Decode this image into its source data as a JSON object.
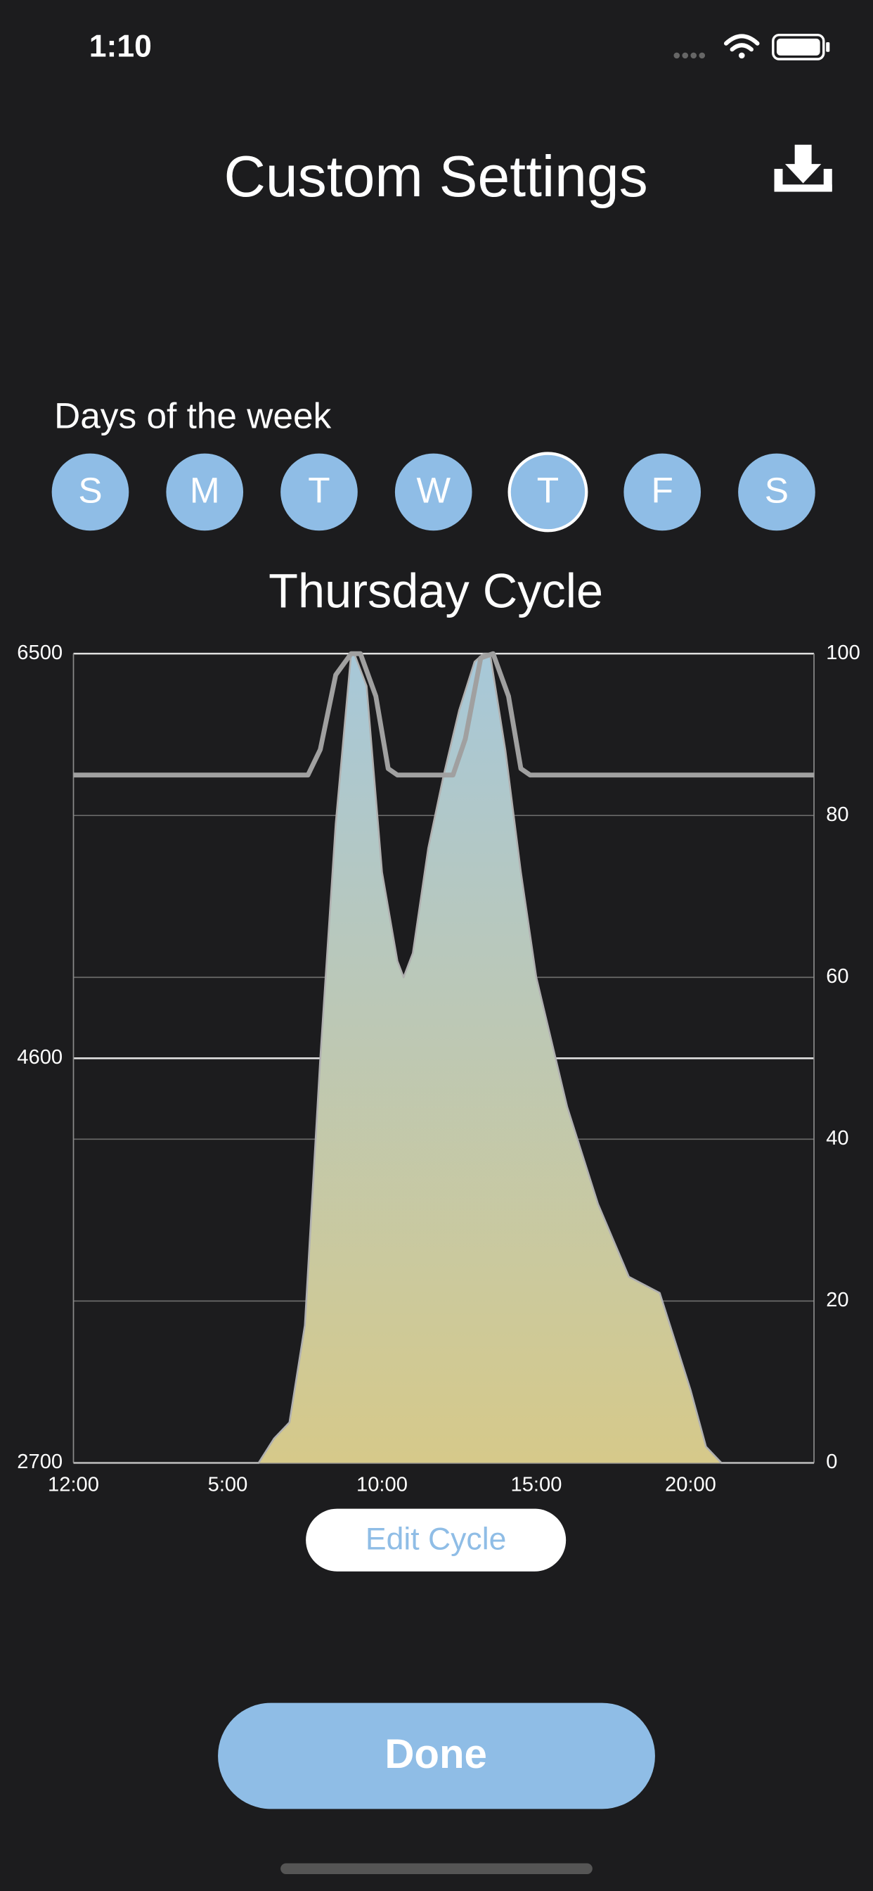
{
  "status": {
    "time": "1:10"
  },
  "header": {
    "title": "Custom Settings"
  },
  "days": {
    "label": "Days of the week",
    "items": [
      "S",
      "M",
      "T",
      "W",
      "T",
      "F",
      "S"
    ],
    "selected": 4
  },
  "chart_data": {
    "type": "area-line",
    "title": "Thursday Cycle",
    "xlim": [
      0,
      24
    ],
    "xticks": [
      {
        "value": 0,
        "label": "12:00"
      },
      {
        "value": 5,
        "label": "5:00"
      },
      {
        "value": 10,
        "label": "10:00"
      },
      {
        "value": 15,
        "label": "15:00"
      },
      {
        "value": 20,
        "label": "20:00"
      }
    ],
    "ylim": [
      2700,
      6500
    ],
    "yticks": [
      2700,
      4600,
      6500
    ],
    "y2lim": [
      0,
      100
    ],
    "y2ticks": [
      0,
      20,
      40,
      60,
      80,
      100
    ],
    "grid": true,
    "series": [
      {
        "axis": "y2",
        "color": "#b0b0b0",
        "x": [
          0,
          5,
          6,
          6.5,
          7,
          7.5,
          8,
          8.5,
          9,
          9.1,
          9.5,
          10,
          10.5,
          10.7,
          11,
          11.5,
          12,
          12.5,
          13,
          13.3,
          13.5,
          14,
          14.5,
          15,
          16,
          17,
          18,
          19,
          19.5,
          20,
          20.5,
          21,
          24
        ],
        "values": [
          0,
          0,
          0,
          3,
          5,
          17,
          50,
          79,
          100,
          100,
          96,
          73,
          62,
          60,
          63,
          76,
          85,
          93,
          99,
          100,
          100,
          88,
          73,
          60,
          44,
          32,
          23,
          21,
          15,
          9,
          2,
          0,
          0
        ]
      },
      {
        "axis": "y",
        "color": "#a0a0a0",
        "x": [
          0,
          7.6,
          8,
          8.5,
          9,
          9.3,
          9.8,
          10.2,
          10.5,
          12.3,
          12.7,
          13.2,
          13.6,
          14.1,
          14.5,
          14.8,
          24
        ],
        "values": [
          5930,
          5930,
          6050,
          6400,
          6500,
          6500,
          6300,
          5960,
          5930,
          5930,
          6100,
          6480,
          6500,
          6300,
          5960,
          5930,
          5930
        ]
      }
    ]
  },
  "buttons": {
    "edit": "Edit Cycle",
    "done": "Done"
  }
}
